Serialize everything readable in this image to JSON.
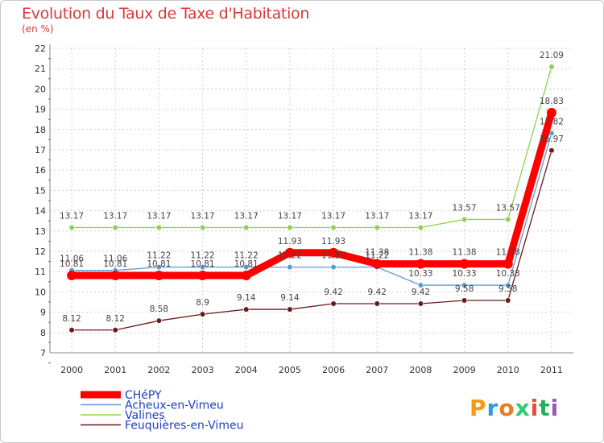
{
  "chart_data": {
    "type": "line",
    "title": "Evolution du Taux de Taxe d'Habitation",
    "subtitle": "(en %)",
    "categories": [
      "2000",
      "2001",
      "2002",
      "2003",
      "2004",
      "2005",
      "2006",
      "2007",
      "2008",
      "2009",
      "2010",
      "2011"
    ],
    "ylim": [
      7,
      22
    ],
    "yticks": [
      "7",
      "8",
      "9",
      "10",
      "11",
      "12",
      "13",
      "14",
      "15",
      "16",
      "17",
      "18",
      "19",
      "20",
      "21",
      "22"
    ],
    "series": [
      {
        "name": "CHéPY",
        "color": "#ff0000",
        "values": [
          10.81,
          10.81,
          10.81,
          10.81,
          10.81,
          11.93,
          11.93,
          11.38,
          11.38,
          11.38,
          11.38,
          18.83
        ],
        "labels": [
          "10.81",
          "10.81",
          "10.81",
          "10.81",
          "10.81",
          "11.93",
          "11.93",
          "11.38",
          "11.38",
          "11.38",
          "11.38",
          "18.83"
        ]
      },
      {
        "name": "Acheux-en-Vimeu",
        "color": "#5b9bd5",
        "values": [
          11.06,
          11.06,
          11.22,
          11.22,
          11.22,
          11.22,
          11.22,
          11.22,
          10.33,
          10.33,
          10.33,
          17.82
        ],
        "labels": [
          "11.06",
          "11.06",
          "11.22",
          "11.22",
          "11.22",
          "11.22",
          "11.22",
          "11.22",
          "10.33",
          "10.33",
          "10.33",
          "17.82"
        ]
      },
      {
        "name": "Valines",
        "color": "#8fd14f",
        "values": [
          13.17,
          13.17,
          13.17,
          13.17,
          13.17,
          13.17,
          13.17,
          13.17,
          13.17,
          13.57,
          13.57,
          21.09
        ],
        "labels": [
          "13.17",
          "13.17",
          "13.17",
          "13.17",
          "13.17",
          "13.17",
          "13.17",
          "13.17",
          "13.17",
          "13.57",
          "13.57",
          "21.09"
        ]
      },
      {
        "name": "Feuquières-en-Vimeu",
        "color": "#6b1a1a",
        "values": [
          8.12,
          8.12,
          8.58,
          8.9,
          9.14,
          9.14,
          9.42,
          9.42,
          9.42,
          9.58,
          9.58,
          16.97
        ],
        "labels": [
          "8.12",
          "8.12",
          "8.58",
          "8.9",
          "9.14",
          "9.14",
          "9.42",
          "9.42",
          "9.42",
          "9.58",
          "9.58",
          "16.97"
        ]
      }
    ]
  },
  "brand": {
    "letters": [
      "P",
      "r",
      "o",
      "x",
      "i",
      "t",
      "i"
    ],
    "colors": [
      "#f39c12",
      "#3498db",
      "#e67e22",
      "#2ecc71",
      "#e74c3c",
      "#27ae60",
      "#9b59b6"
    ]
  }
}
